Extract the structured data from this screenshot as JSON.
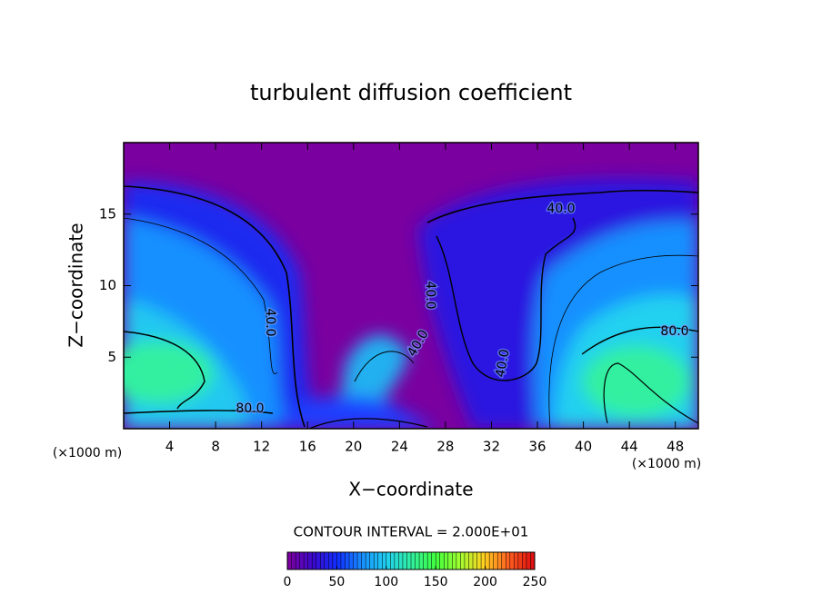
{
  "chart_data": {
    "type": "contour",
    "title": "turbulent diffusion coefficient",
    "xlabel": "X−coordinate",
    "ylabel": "Z−coordinate",
    "x_unit_labels": [
      "(×1000 m)",
      "(×1000 m)"
    ],
    "xlim": [
      0,
      50
    ],
    "xticks": [
      4,
      8,
      12,
      16,
      20,
      24,
      28,
      32,
      36,
      40,
      44,
      48
    ],
    "ylim": [
      0,
      20
    ],
    "yticks": [
      5,
      10,
      15
    ],
    "contours": {
      "values": [
        40,
        40,
        80,
        40,
        40,
        40,
        80
      ],
      "value_labels": [
        "40.0",
        "40.0",
        "80.0",
        "40.0",
        "40.0",
        "40.0",
        "80.0"
      ]
    },
    "footer": "CONTOUR INTERVAL = 2.000E+01",
    "colorbar": {
      "lim": [
        0,
        250
      ],
      "ticks": [
        0,
        50,
        100,
        150,
        200,
        250
      ],
      "colormap": [
        "#7a00a0",
        "#3a0ad0",
        "#1030ff",
        "#1890ff",
        "#20d0f0",
        "#30f0a0",
        "#40ff40",
        "#a0ff30",
        "#ffd020",
        "#ff6020",
        "#e01010"
      ]
    }
  }
}
